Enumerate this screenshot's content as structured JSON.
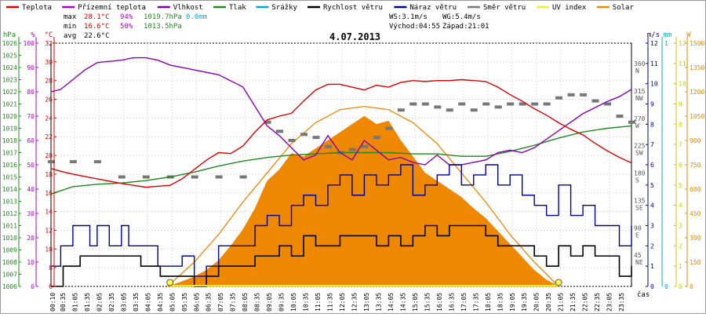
{
  "chart_data": {
    "type": "line",
    "title": "4.07.2013",
    "xlabel": "čas",
    "legend": [
      {
        "name": "Teplota",
        "color": "#dd0000"
      },
      {
        "name": "Přízemní teplota",
        "color": "#aa00cc"
      },
      {
        "name": "Vlhkost",
        "color": "#7a00aa"
      },
      {
        "name": "Tlak",
        "color": "#228822"
      },
      {
        "name": "Srážky",
        "color": "#00aacc"
      },
      {
        "name": "Rychlost větru",
        "color": "#000000"
      },
      {
        "name": "Náraz větru",
        "color": "#000099"
      },
      {
        "name": "Směr větru",
        "color": "#777777"
      },
      {
        "name": "UV index",
        "color": "#eeee33"
      },
      {
        "name": "Solar",
        "color": "#ee8800"
      }
    ],
    "stats": {
      "max_label": "max",
      "max_temp": "28.1°C",
      "max_hum": "94%",
      "max_press": "1019.7hPa",
      "max_rain": "0.0mm",
      "min_label": "min",
      "min_temp": "16.6°C",
      "min_hum": "50%",
      "min_press": "1013.5hPa",
      "avg_label": "avg",
      "avg_temp": "22.6°C"
    },
    "wind_info": {
      "ws": "WS:3.1m/s",
      "wg": "WG:5.4m/s",
      "sunrise": "Východ:04:55",
      "sunset": "Západ:21:01"
    },
    "axes": {
      "pressure": {
        "unit": "hPa",
        "color": "#228822",
        "min": 1006,
        "max": 1026,
        "ticks": [
          "1026",
          "1025",
          "1024",
          "1023",
          "1022",
          "1021",
          "1020",
          "1019",
          "1018",
          "1017",
          "1016",
          "1015",
          "1014",
          "1013",
          "1012",
          "1011",
          "1010",
          "1009",
          "1008",
          "1007",
          "1006"
        ]
      },
      "humidity": {
        "unit": "%",
        "color": "#aa00cc",
        "min": 0,
        "max": 100,
        "ticks": [
          "100",
          "90",
          "80",
          "70",
          "60",
          "50",
          "40",
          "30",
          "20",
          "10",
          "0"
        ]
      },
      "temperature": {
        "unit": "°C",
        "color": "#dd0000",
        "min": 6,
        "max": 32,
        "ticks": [
          "32",
          "30",
          "28",
          "26",
          "24",
          "22",
          "20",
          "18",
          "16",
          "14",
          "12",
          "10",
          "8",
          "6"
        ]
      },
      "direction": {
        "unit": "",
        "color": "#555555",
        "ticks": [
          {
            "deg": "360",
            "dir": "N"
          },
          {
            "deg": "315",
            "dir": "NW"
          },
          {
            "deg": "270",
            "dir": "W"
          },
          {
            "deg": "225",
            "dir": "SW"
          },
          {
            "deg": "180",
            "dir": "S"
          },
          {
            "deg": "135",
            "dir": "SE"
          },
          {
            "deg": "90",
            "dir": "E"
          },
          {
            "deg": "45",
            "dir": "NE"
          }
        ]
      },
      "wind": {
        "unit": "m/s",
        "color": "#000099",
        "min": 0,
        "max": 12,
        "ticks": [
          "12",
          "11",
          "10",
          "9",
          "8",
          "7",
          "6",
          "5",
          "4",
          "3",
          "2",
          "1",
          "0"
        ]
      },
      "rain": {
        "unit": "mm",
        "color": "#00aacc",
        "ticks": [
          "1",
          "0"
        ]
      },
      "uv": {
        "unit": "",
        "color": "#cccc00",
        "ticks": [
          "12",
          "11",
          "10",
          "9",
          "8",
          "7",
          "6",
          "5",
          "4",
          "3",
          "2",
          "1",
          "0"
        ]
      },
      "solar": {
        "unit": "W",
        "color": "#ee8800",
        "min": 0,
        "max": 1500,
        "ticks": [
          "1500",
          "1350",
          "1200",
          "1050",
          "900",
          "750",
          "600",
          "450",
          "300",
          "150",
          "0"
        ]
      }
    },
    "x_ticks": [
      "00:10",
      "00:35",
      "01:05",
      "01:35",
      "02:05",
      "02:35",
      "03:05",
      "03:35",
      "04:05",
      "04:35",
      "05:05",
      "05:35",
      "06:05",
      "06:35",
      "07:05",
      "07:35",
      "08:05",
      "08:35",
      "09:05",
      "09:35",
      "10:05",
      "10:35",
      "11:05",
      "11:35",
      "12:05",
      "12:35",
      "13:05",
      "13:35",
      "14:05",
      "14:35",
      "15:05",
      "15:35",
      "16:05",
      "16:35",
      "17:05",
      "17:35",
      "18:05",
      "18:35",
      "19:05",
      "19:35",
      "20:05",
      "20:35",
      "21:05",
      "21:35",
      "22:05",
      "22:35",
      "23:05",
      "23:35"
    ],
    "x_range_hours": [
      0.1,
      24.0
    ],
    "series": [
      {
        "name": "Teplota",
        "unit": "°C",
        "x": [
          0.1,
          0.5,
          1,
          2,
          3,
          3.5,
          4,
          5,
          5.5,
          6,
          6.5,
          7,
          7.5,
          8,
          8.5,
          9,
          9.5,
          10,
          10.5,
          11,
          11.5,
          12,
          12.5,
          13,
          13.5,
          14,
          14.5,
          15,
          15.5,
          16,
          16.5,
          17,
          17.5,
          18,
          18.5,
          19,
          19.5,
          20,
          20.5,
          21,
          21.5,
          22,
          22.5,
          23,
          23.5,
          24
        ],
        "y": [
          18.6,
          18.3,
          18.0,
          17.5,
          17.0,
          16.8,
          16.6,
          16.8,
          17.5,
          18.5,
          19.5,
          20.3,
          20.2,
          21.0,
          22.5,
          23.8,
          24.2,
          24.5,
          25.8,
          27.0,
          27.6,
          27.6,
          27.3,
          27.0,
          27.5,
          27.3,
          27.8,
          28.0,
          27.9,
          28.0,
          28.0,
          28.1,
          28.0,
          27.9,
          27.3,
          26.5,
          25.8,
          25.0,
          24.3,
          23.5,
          22.8,
          22.2,
          21.3,
          20.5,
          19.8,
          19.2
        ]
      },
      {
        "name": "Vlhkost",
        "unit": "%",
        "x": [
          0.1,
          0.5,
          1,
          1.5,
          2,
          3,
          3.5,
          4,
          4.5,
          5,
          6,
          7,
          8,
          8.5,
          9,
          9.5,
          10,
          10.5,
          11,
          11.5,
          12,
          12.5,
          13,
          13.5,
          14,
          14.5,
          15,
          15.5,
          16,
          16.5,
          17,
          17.5,
          18,
          18.5,
          19,
          19.5,
          20,
          21,
          22,
          23,
          23.5,
          24
        ],
        "y": [
          80,
          81,
          85,
          89,
          92,
          93,
          94,
          94,
          93,
          91,
          89,
          87,
          82,
          74,
          66,
          62,
          57,
          52,
          54,
          62,
          55,
          52,
          60,
          56,
          52,
          53,
          51,
          50,
          54,
          50,
          50,
          51,
          52,
          55,
          56,
          55,
          57,
          64,
          71,
          76,
          78,
          81
        ]
      },
      {
        "name": "Tlak",
        "unit": "hPa",
        "x": [
          0.1,
          1,
          2,
          3,
          4,
          5,
          6,
          7,
          8,
          9,
          10,
          11,
          12,
          13,
          14,
          15,
          16,
          17,
          18,
          19,
          20,
          21,
          22,
          23,
          24
        ],
        "y": [
          1013.6,
          1014.2,
          1014.4,
          1014.5,
          1014.7,
          1015.0,
          1015.4,
          1015.9,
          1016.3,
          1016.6,
          1016.8,
          1016.9,
          1017.0,
          1017.0,
          1017.0,
          1016.9,
          1016.9,
          1016.7,
          1016.7,
          1017.1,
          1017.6,
          1018.2,
          1018.7,
          1019.0,
          1019.2
        ]
      },
      {
        "name": "Rychlost větru",
        "unit": "m/s",
        "x": [
          0.1,
          0.6,
          1.0,
          1.3,
          1.8,
          2.3,
          3.0,
          3.4,
          3.8,
          4.2,
          4.6,
          5.0,
          5.5,
          6.0,
          6.5,
          7.0,
          7.5,
          8.0,
          8.5,
          9.0,
          9.5,
          10.0,
          10.5,
          11.0,
          11.5,
          12.0,
          12.5,
          13.0,
          13.5,
          14.0,
          14.5,
          15.0,
          15.5,
          16.0,
          16.5,
          17.0,
          17.5,
          18.0,
          18.5,
          19.0,
          19.5,
          20.0,
          20.5,
          21.0,
          21.5,
          22.0,
          22.5,
          23.0,
          23.5,
          24.0
        ],
        "y": [
          0,
          1,
          1,
          1.5,
          1.5,
          1.5,
          1.5,
          1.5,
          1,
          1,
          0.5,
          0.5,
          0.5,
          0,
          0.5,
          1,
          1,
          1,
          1.5,
          1.5,
          2,
          1.5,
          2.5,
          2,
          2,
          2.5,
          2.5,
          2.5,
          2,
          2.5,
          2,
          2.5,
          3,
          2.5,
          3,
          3,
          3,
          2.5,
          2,
          2,
          2,
          1.5,
          1,
          2,
          1.5,
          2,
          1.5,
          1.5,
          0.5,
          1
        ]
      },
      {
        "name": "Náraz větru",
        "unit": "m/s",
        "x": [
          0.1,
          0.5,
          1.0,
          1.3,
          1.7,
          2.0,
          2.5,
          3.0,
          3.3,
          3.6,
          4.0,
          4.5,
          5.0,
          5.5,
          6.0,
          6.5,
          7.0,
          7.5,
          8.0,
          8.5,
          9.0,
          9.5,
          10.0,
          10.5,
          11.0,
          11.5,
          12.0,
          12.5,
          13.0,
          13.5,
          14.0,
          14.5,
          15.0,
          15.5,
          16.0,
          16.5,
          17.0,
          17.5,
          18.0,
          18.5,
          19.0,
          19.5,
          20.0,
          20.5,
          21.0,
          21.5,
          22.0,
          22.5,
          23.0,
          23.5,
          24.0
        ],
        "y": [
          1,
          2,
          3,
          3,
          2,
          3,
          2,
          3,
          2,
          2,
          2,
          1,
          1,
          1.5,
          0.5,
          1,
          2,
          2,
          2,
          3,
          3.5,
          3,
          4,
          4.5,
          4,
          5,
          5.5,
          4.5,
          5.5,
          5,
          5.5,
          6,
          4.5,
          5,
          5.5,
          6,
          5,
          5.5,
          6,
          5,
          5.5,
          4.5,
          4,
          3.5,
          5,
          3.5,
          4,
          3,
          3,
          2,
          3
        ]
      },
      {
        "name": "Směr větru",
        "unit": "°",
        "x": [
          0.1,
          1,
          2,
          3,
          4,
          5,
          6,
          7,
          8,
          9,
          9.5,
          10,
          10.5,
          11,
          11.5,
          12,
          12.5,
          13,
          13.5,
          14,
          14.5,
          15,
          15.5,
          16,
          16.5,
          17,
          17.5,
          18,
          18.5,
          19,
          19.5,
          20,
          20.5,
          21,
          21.5,
          22,
          22.5,
          23,
          23.5,
          24
        ],
        "deg": [
          205,
          205,
          205,
          180,
          180,
          180,
          180,
          180,
          180,
          270,
          255,
          240,
          250,
          245,
          230,
          220,
          225,
          230,
          245,
          260,
          290,
          300,
          300,
          295,
          290,
          300,
          290,
          300,
          295,
          300,
          300,
          300,
          300,
          310,
          315,
          315,
          305,
          300,
          280,
          270
        ]
      },
      {
        "name": "UV index",
        "unit": "",
        "x": [
          5.0,
          21.0
        ],
        "y": [
          0,
          0
        ]
      },
      {
        "name": "Solar",
        "unit": "W/m²",
        "x": [
          4.9,
          5.5,
          6,
          6.5,
          7,
          7.5,
          8,
          8.5,
          9,
          9.5,
          10,
          10.5,
          11,
          11.5,
          12,
          12.5,
          13,
          13.5,
          14,
          14.5,
          15,
          15.5,
          16,
          16.5,
          17,
          17.5,
          18,
          18.5,
          19,
          19.5,
          20,
          20.5,
          21
        ],
        "y": [
          0,
          30,
          60,
          100,
          160,
          250,
          350,
          480,
          650,
          720,
          820,
          800,
          850,
          900,
          950,
          1000,
          1050,
          1000,
          1020,
          900,
          800,
          700,
          650,
          600,
          550,
          480,
          420,
          340,
          260,
          180,
          100,
          40,
          0
        ]
      },
      {
        "name": "Solar theoretical",
        "unit": "W/m²",
        "x": [
          4.9,
          6,
          7,
          8,
          9,
          10,
          11,
          12,
          13,
          14,
          15,
          16,
          17,
          18,
          19,
          20,
          21
        ],
        "y": [
          0,
          150,
          320,
          520,
          700,
          880,
          1010,
          1090,
          1110,
          1090,
          1010,
          880,
          700,
          520,
          320,
          150,
          0
        ]
      }
    ]
  }
}
